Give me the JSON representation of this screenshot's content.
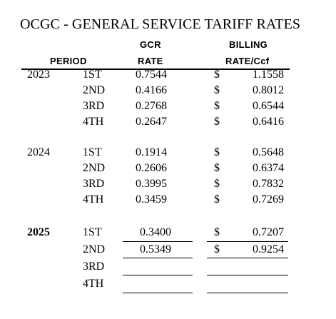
{
  "title": "OCGC - GENERAL SERVICE TARIFF RATES",
  "headers": {
    "period": "PERIOD",
    "gcr_top": "GCR",
    "gcr_bottom": "RATE",
    "billing_top": "BILLING",
    "billing_bottom": "RATE/Ccf"
  },
  "years": [
    {
      "year": "2023",
      "bold": false,
      "rows": [
        {
          "period": "1ST",
          "gcr": "0.7544",
          "dollar": "$",
          "billing": "1.1558"
        },
        {
          "period": "2ND",
          "gcr": "0.4166",
          "dollar": "$",
          "billing": "0.8012"
        },
        {
          "period": "3RD",
          "gcr": "0.2768",
          "dollar": "$",
          "billing": "0.6544"
        },
        {
          "period": "4TH",
          "gcr": "0.2647",
          "dollar": "$",
          "billing": "0.6416"
        }
      ]
    },
    {
      "year": "2024",
      "bold": false,
      "rows": [
        {
          "period": "1ST",
          "gcr": "0.1914",
          "dollar": "$",
          "billing": "0.5648"
        },
        {
          "period": "2ND",
          "gcr": "0.2606",
          "dollar": "$",
          "billing": "0.6374"
        },
        {
          "period": "3RD",
          "gcr": "0.3995",
          "dollar": "$",
          "billing": "0.7832"
        },
        {
          "period": "4TH",
          "gcr": "0.3459",
          "dollar": "$",
          "billing": "0.7269"
        }
      ]
    },
    {
      "year": "2025",
      "bold": true,
      "rows": [
        {
          "period": "1ST",
          "gcr": "0.3400",
          "dollar": "$",
          "billing": "0.7207"
        },
        {
          "period": "2ND",
          "gcr": "0.5349",
          "dollar": "$",
          "billing": "0.9254"
        },
        {
          "period": "3RD",
          "gcr": "",
          "dollar": "",
          "billing": ""
        },
        {
          "period": "4TH",
          "gcr": "",
          "dollar": "",
          "billing": ""
        }
      ]
    }
  ]
}
